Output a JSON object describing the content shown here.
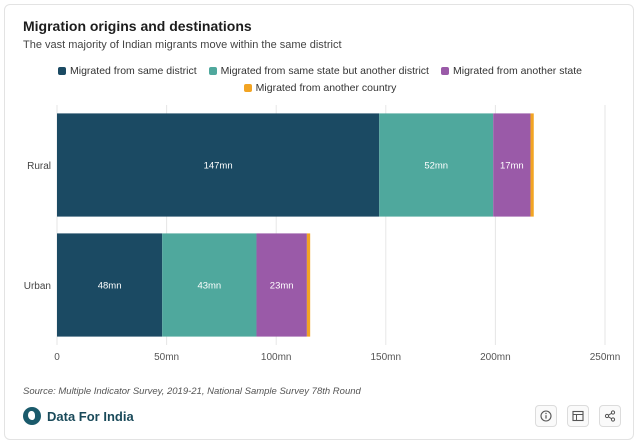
{
  "header": {
    "title": "Migration origins and destinations",
    "subtitle": "The vast majority of Indian migrants move within the same district"
  },
  "footer": {
    "source": "Source: Multiple Indicator Survey, 2019-21, National Sample Survey 78th Round",
    "brand": "Data For India",
    "buttons": {
      "info_icon": "info-icon",
      "table_icon": "table-icon",
      "share_icon": "share-icon"
    }
  },
  "chart_data": {
    "type": "bar",
    "orientation": "horizontal",
    "stacked": true,
    "categories": [
      "Rural",
      "Urban"
    ],
    "series": [
      {
        "name": "Migrated from same district",
        "values": [
          147,
          48
        ],
        "labels": [
          "147mn",
          "48mn"
        ],
        "color": "#1b4a63"
      },
      {
        "name": "Migrated from same state but another district",
        "values": [
          52,
          43
        ],
        "labels": [
          "52mn",
          "43mn"
        ],
        "color": "#4fa89d"
      },
      {
        "name": "Migrated from another state",
        "values": [
          17,
          23
        ],
        "labels": [
          "17mn",
          "23mn"
        ],
        "color": "#9a5aa8"
      },
      {
        "name": "Migrated from another country",
        "values": [
          1.5,
          1.5
        ],
        "labels": [
          "",
          ""
        ],
        "color": "#f2a423"
      }
    ],
    "xlim": [
      0,
      250
    ],
    "x_ticks": [
      0,
      50,
      100,
      150,
      200,
      250
    ],
    "x_tick_labels": [
      "0",
      "50mn",
      "100mn",
      "150mn",
      "200mn",
      "250mn"
    ],
    "grid": "vertical",
    "legend": "top-center"
  }
}
